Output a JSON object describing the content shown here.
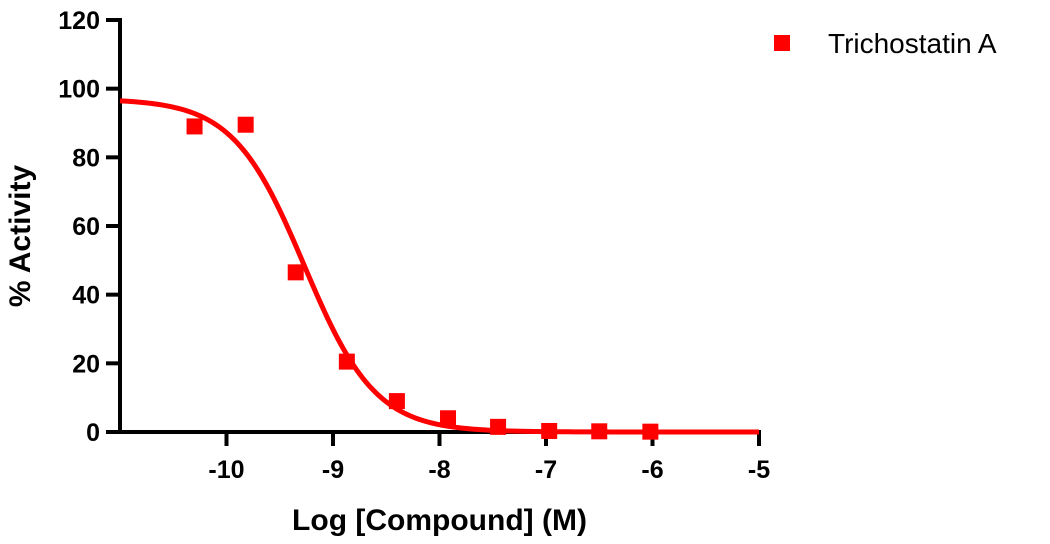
{
  "chart_data": {
    "type": "scatter",
    "xlabel": "Log [Compound] (M)",
    "ylabel": "% Activity",
    "xlim": [
      -11,
      -5
    ],
    "ylim": [
      0,
      120
    ],
    "x_ticks": [
      -10,
      -9,
      -8,
      -7,
      -6,
      -5
    ],
    "x_tick_labels": [
      "-10",
      "-9",
      "-8",
      "-7",
      "-6",
      "-5"
    ],
    "y_ticks": [
      0,
      20,
      40,
      60,
      80,
      100,
      120
    ],
    "y_tick_labels": [
      "0",
      "20",
      "40",
      "60",
      "80",
      "100",
      "120"
    ],
    "grid": false,
    "legend_position": "top-right",
    "series": [
      {
        "name": "Trichostatin A",
        "color": "#ff0000",
        "marker": "square",
        "points": [
          {
            "x": -10.3,
            "y": 89
          },
          {
            "x": -9.82,
            "y": 89.5
          },
          {
            "x": -9.35,
            "y": 46.5
          },
          {
            "x": -8.87,
            "y": 20.5
          },
          {
            "x": -8.4,
            "y": 9
          },
          {
            "x": -7.92,
            "y": 4
          },
          {
            "x": -7.45,
            "y": 1.5
          },
          {
            "x": -6.97,
            "y": 0.3
          },
          {
            "x": -6.5,
            "y": 0.2
          },
          {
            "x": -6.02,
            "y": 0.1
          }
        ],
        "fit": {
          "model": "sigmoidal dose-response",
          "top": 97,
          "bottom": 0,
          "log_ic50": -9.27,
          "hill_slope": -1.3
        }
      }
    ]
  }
}
